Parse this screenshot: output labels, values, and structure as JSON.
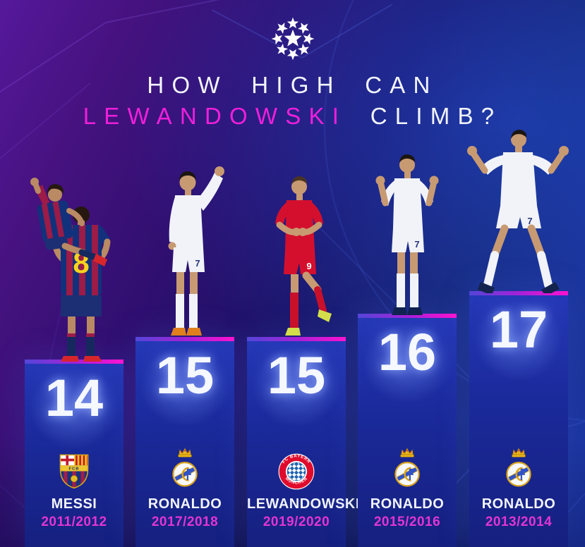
{
  "header": {
    "logo": "uefa-champions-league-starball",
    "title_line1": "HOW HIGH CAN",
    "title_highlight": "LEWANDOWSKI",
    "title_suffix": "CLIMB?"
  },
  "columns": [
    {
      "goals": "14",
      "player": "MESSI",
      "season": "2011/2012",
      "club_badge": "fc-barcelona-crest"
    },
    {
      "goals": "15",
      "player": "RONALDO",
      "season": "2017/2018",
      "club_badge": "real-madrid-crest"
    },
    {
      "goals": "15",
      "player": "LEWANDOWSKI",
      "season": "2019/2020",
      "club_badge": "fc-bayern-munich-crest"
    },
    {
      "goals": "16",
      "player": "RONALDO",
      "season": "2015/2016",
      "club_badge": "real-madrid-crest"
    },
    {
      "goals": "17",
      "player": "RONALDO",
      "season": "2013/2014",
      "club_badge": "real-madrid-crest"
    }
  ],
  "players": [
    {
      "figure": "messi-piggyback-celebration",
      "jersey_number": "8",
      "kit": "barcelona-blue-red-stripes"
    },
    {
      "figure": "ronaldo-single-fist-pump",
      "jersey_number": "7",
      "kit": "real-madrid-white"
    },
    {
      "figure": "lewandowski-fists-together",
      "jersey_number": "9",
      "kit": "bayern-red"
    },
    {
      "figure": "ronaldo-double-fist-pump",
      "jersey_number": "7",
      "kit": "real-madrid-white"
    },
    {
      "figure": "ronaldo-arms-spread-roar",
      "jersey_number": "7",
      "kit": "real-madrid-white"
    }
  ],
  "badges": {
    "barcelona_text": "FCB",
    "bayern_top_text": "FC BAYERN",
    "bayern_bottom_text": "MÜNCHEN"
  },
  "chart_data": {
    "type": "bar",
    "title": "HOW HIGH CAN LEWANDOWSKI CLIMB?",
    "categories": [
      "MESSI 2011/2012",
      "RONALDO 2017/2018",
      "LEWANDOWSKI 2019/2020",
      "RONALDO 2015/2016",
      "RONALDO 2013/2014"
    ],
    "values": [
      14,
      15,
      15,
      16,
      17
    ],
    "value_labels": [
      "14",
      "15",
      "15",
      "16",
      "17"
    ],
    "xlabel": "",
    "ylabel": "",
    "legend": "none",
    "layout": "podium-columns, values printed on columns, club badge + player + season at column base"
  },
  "colors": {
    "background_left": "#55189b",
    "background_right": "#1b38ab",
    "column_top": "#2639b8",
    "column_bottom": "#15207f",
    "stripe_left": "#5346d8",
    "stripe_right": "#ff12cf",
    "title_highlight": "#ef1fdb",
    "season_text": "#e335d4",
    "number_text": "#f5f8ff"
  }
}
